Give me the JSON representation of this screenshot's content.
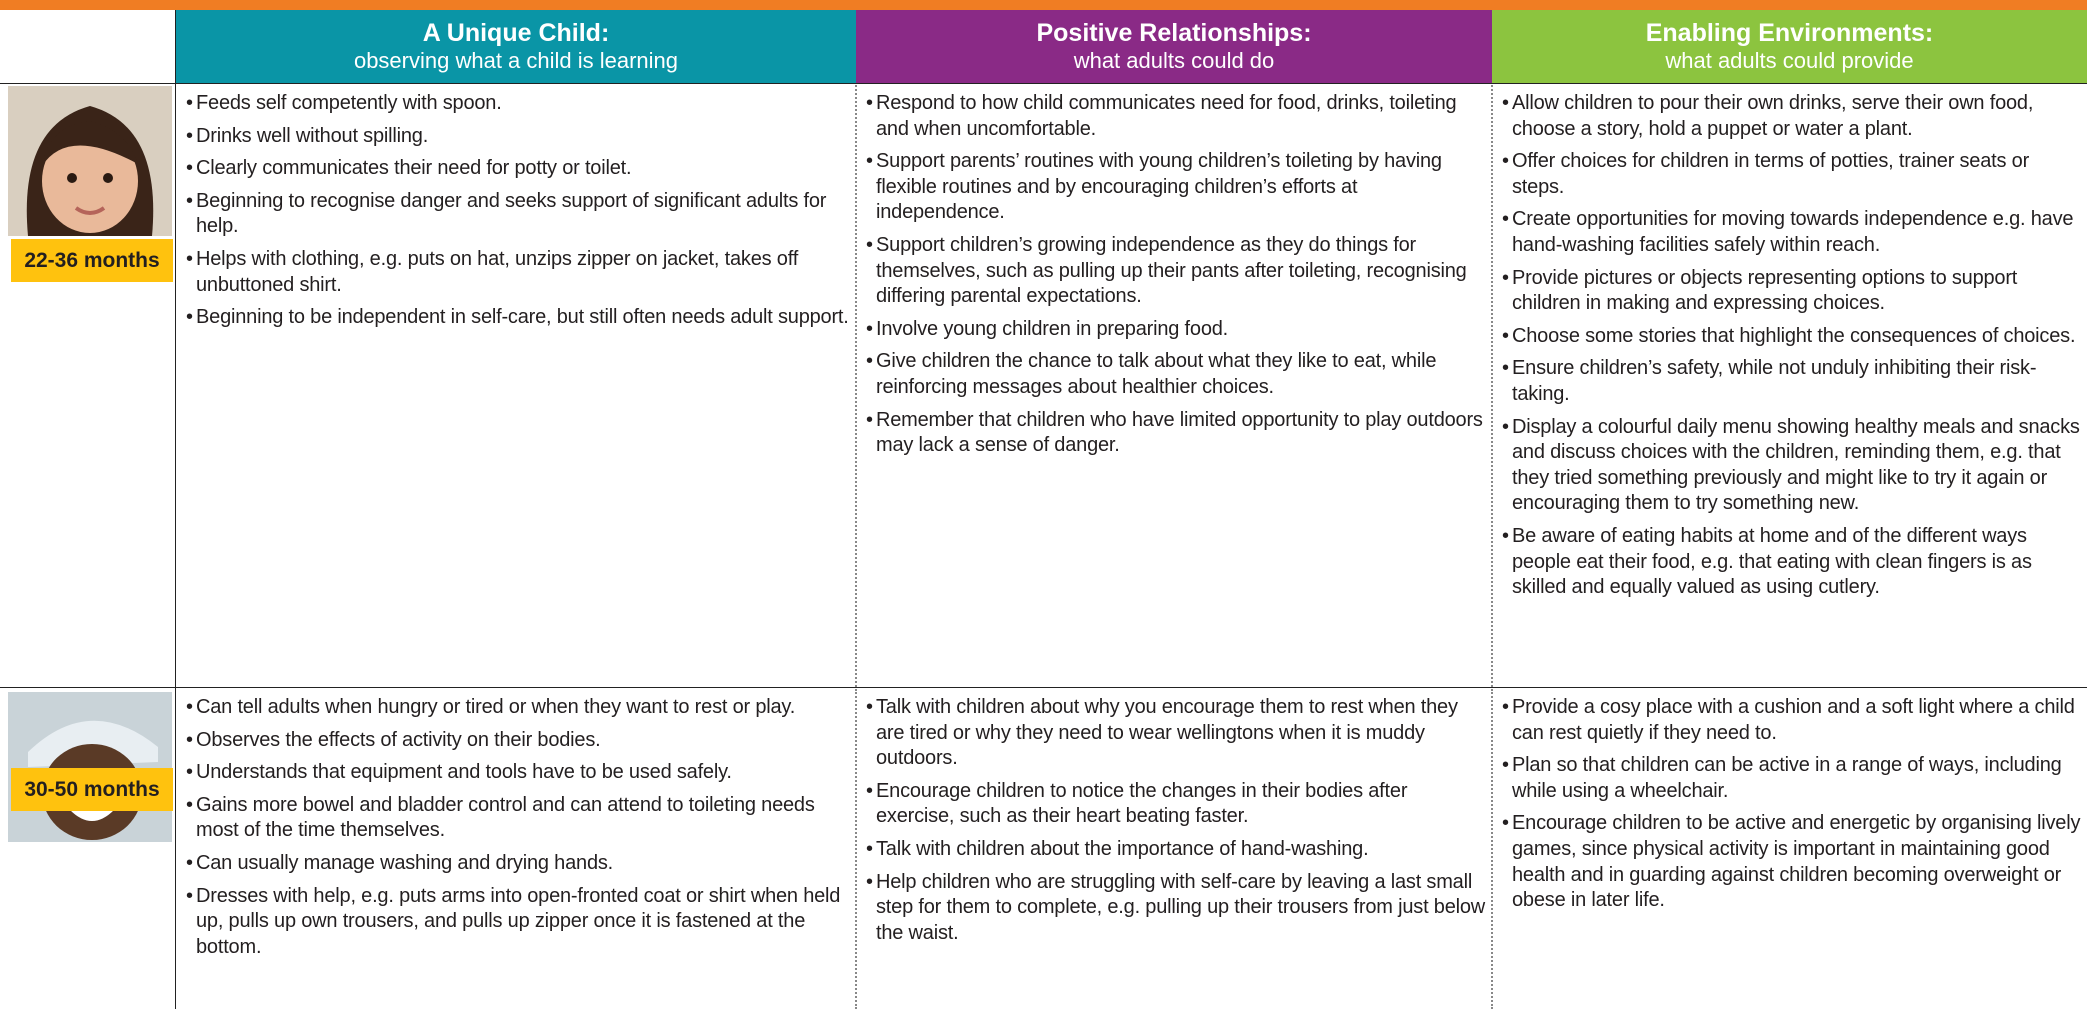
{
  "header": {
    "columns": [
      {
        "title": "A Unique Child:",
        "subtitle": "observing what a child is learning"
      },
      {
        "title": "Positive Relationships:",
        "subtitle": "what adults could do"
      },
      {
        "title": "Enabling Environments:",
        "subtitle": "what adults could provide"
      }
    ]
  },
  "rows": [
    {
      "age": "22-36 months",
      "cells": [
        [
          "Feeds self competently with spoon.",
          "Drinks well without spilling.",
          "Clearly communicates their need for potty or toilet.",
          "Beginning to recognise danger and seeks support of significant adults for help.",
          "Helps with clothing, e.g. puts on hat, unzips zipper on jacket, takes off unbuttoned shirt.",
          "Beginning to be independent in self-care, but still often needs adult support."
        ],
        [
          "Respond to how child communicates need for food, drinks, toileting and when uncomfortable.",
          "Support parents’ routines with young children’s toileting by having flexible routines and by encouraging children’s efforts at independence.",
          "Support children’s growing independence as they do things for themselves, such as pulling up their pants after toileting, recognising differing parental expectations.",
          "Involve young children in preparing food.",
          "Give children the chance to talk about what they like to eat, while reinforcing messages about healthier choices.",
          "Remember that children who have limited opportunity to play outdoors may lack a sense of danger."
        ],
        [
          "Allow children to pour their own drinks, serve their own food, choose a story, hold a puppet or water a plant.",
          "Offer choices for children in terms of potties, trainer seats or steps.",
          "Create opportunities for moving towards independence e.g. have hand-washing facilities safely within reach.",
          "Provide pictures or objects representing options to support children in making and expressing choices.",
          "Choose some stories that highlight the consequences of choices.",
          "Ensure children’s safety, while not unduly inhibiting their risk-taking.",
          "Display a colourful daily menu showing healthy meals and snacks and discuss choices with the children, reminding them, e.g. that they tried something previously and might like to try it again or encouraging them to try something new.",
          "Be aware of eating habits at home and of the different ways people eat their food, e.g. that eating with clean fingers is as skilled and equally valued as using cutlery."
        ]
      ]
    },
    {
      "age": "30-50 months",
      "cells": [
        [
          "Can tell adults when hungry or tired or when they want to rest or play.",
          "Observes the effects of activity on their bodies.",
          "Understands that equipment and tools have to be used safely.",
          "Gains more bowel and bladder control and can attend to toileting needs most of the time themselves.",
          "Can usually manage washing and drying hands.",
          "Dresses with help, e.g. puts arms into open-fronted coat or shirt when held up, pulls up own trousers, and pulls up zipper once it is fastened at the bottom."
        ],
        [
          "Talk with children about why you encourage them to rest when they are tired or why they need to wear wellingtons when it is muddy outdoors.",
          "Encourage children to notice the changes in their bodies after exercise, such as their heart beating faster.",
          "Talk with children about the importance of hand-washing.",
          "Help children who are struggling with self-care by leaving a last small step for them to complete, e.g. pulling up their trousers from just below the waist."
        ],
        [
          "Provide a cosy place with a cushion and a soft light where a child can rest quietly if they need to.",
          "Plan so that children can be active in a range of ways, including while using a wheelchair.",
          "Encourage children to be active and energetic by organising lively games, since physical activity is important in maintaining good health and in guarding against children becoming overweight or obese in later life."
        ]
      ]
    }
  ]
}
